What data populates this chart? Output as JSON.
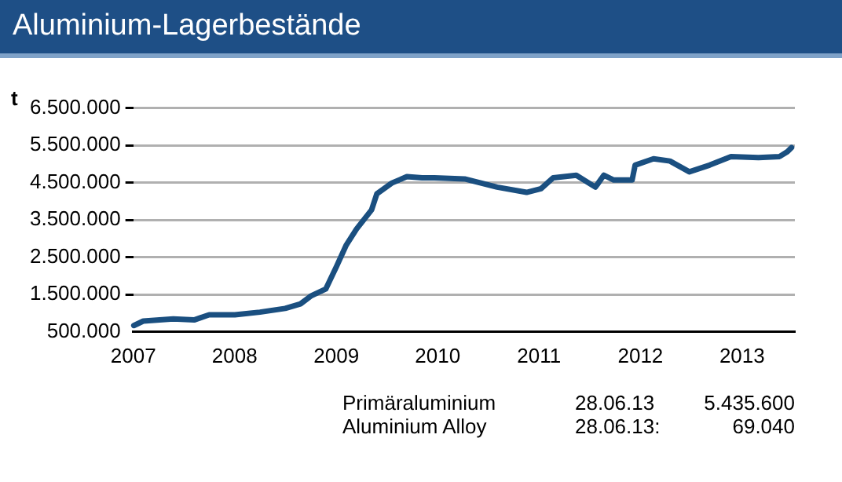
{
  "chart_data": {
    "type": "line",
    "title": "Aluminium-Lagerbestände",
    "ylabel": "t",
    "x": [
      "2007-01-03",
      "2007-02-06",
      "2007-05-25",
      "2007-08-08",
      "2007-10-01",
      "2008-01-02",
      "2008-04-01",
      "2008-07-01",
      "2008-08-25",
      "2008-10-01",
      "2008-11-24",
      "2009-01-02",
      "2009-02-06",
      "2009-03-15",
      "2009-05-08",
      "2009-05-27",
      "2009-07-20",
      "2009-09-12",
      "2009-11-06",
      "2009-12-20",
      "2010-04-08",
      "2010-08-03",
      "2010-11-17",
      "2011-01-08",
      "2011-02-21",
      "2011-05-15",
      "2011-07-23",
      "2011-08-22",
      "2011-09-27",
      "2011-12-02",
      "2011-12-13",
      "2012-02-17",
      "2012-04-16",
      "2012-06-25",
      "2012-09-06",
      "2012-11-22",
      "2013-03-01",
      "2013-05-16",
      "2013-06-13",
      "2013-06-28"
    ],
    "values": [
      670000,
      790000,
      850000,
      820000,
      960000,
      960000,
      1030000,
      1130000,
      1250000,
      1460000,
      1650000,
      2260000,
      2830000,
      3260000,
      3770000,
      4200000,
      4490000,
      4660000,
      4630000,
      4630000,
      4600000,
      4380000,
      4240000,
      4340000,
      4630000,
      4700000,
      4380000,
      4700000,
      4570000,
      4570000,
      4970000,
      5140000,
      5080000,
      4790000,
      4970000,
      5200000,
      5170000,
      5200000,
      5330000,
      5440000
    ],
    "color": "#1a4f80",
    "marker": "none",
    "grid": "y",
    "legend": false,
    "xlim": [
      "2007-01-01",
      "2013-07-10"
    ],
    "xticks": [
      "2007",
      "2008",
      "2009",
      "2010",
      "2011",
      "2012",
      "2013"
    ],
    "ylim": [
      500000,
      6500000
    ],
    "yticks": [
      {
        "value": 500000,
        "label": "500.000"
      },
      {
        "value": 1500000,
        "label": "1.500.000"
      },
      {
        "value": 2500000,
        "label": "2.500.000"
      },
      {
        "value": 3500000,
        "label": "3.500.000"
      },
      {
        "value": 4500000,
        "label": "4.500.000"
      },
      {
        "value": 5500000,
        "label": "5.500.000"
      },
      {
        "value": 6500000,
        "label": "6.500.000"
      }
    ],
    "annotations": [
      "Primäraluminium",
      "28.06.13",
      "5.435.600",
      "Aluminium Alloy",
      "28.06.13:",
      "69.040"
    ]
  }
}
